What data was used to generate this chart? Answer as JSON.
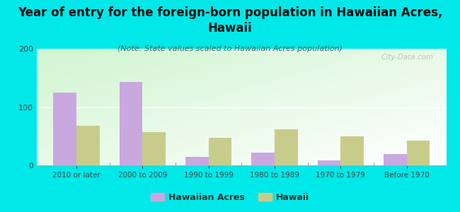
{
  "title": "Year of entry for the foreign-born population in Hawaiian Acres,\nHawaii",
  "subtitle": "(Note: State values scaled to Hawaiian Acres population)",
  "categories": [
    "2010 or later",
    "2000 to 2009",
    "1990 to 1999",
    "1980 to 1989",
    "1970 to 1979",
    "Before 1970"
  ],
  "hawaiian_acres": [
    125,
    143,
    15,
    22,
    8,
    20
  ],
  "hawaii": [
    68,
    57,
    47,
    62,
    50,
    43
  ],
  "bar_color_ha": "#c9a8e0",
  "bar_color_hi": "#c8cc8a",
  "bg_color": "#00e8e8",
  "ylim": [
    0,
    200
  ],
  "yticks": [
    0,
    100,
    200
  ],
  "legend_label_ha": "Hawaiian Acres",
  "legend_label_hi": "Hawaii",
  "title_fontsize": 12,
  "subtitle_fontsize": 8,
  "watermark": "City-Data.com"
}
